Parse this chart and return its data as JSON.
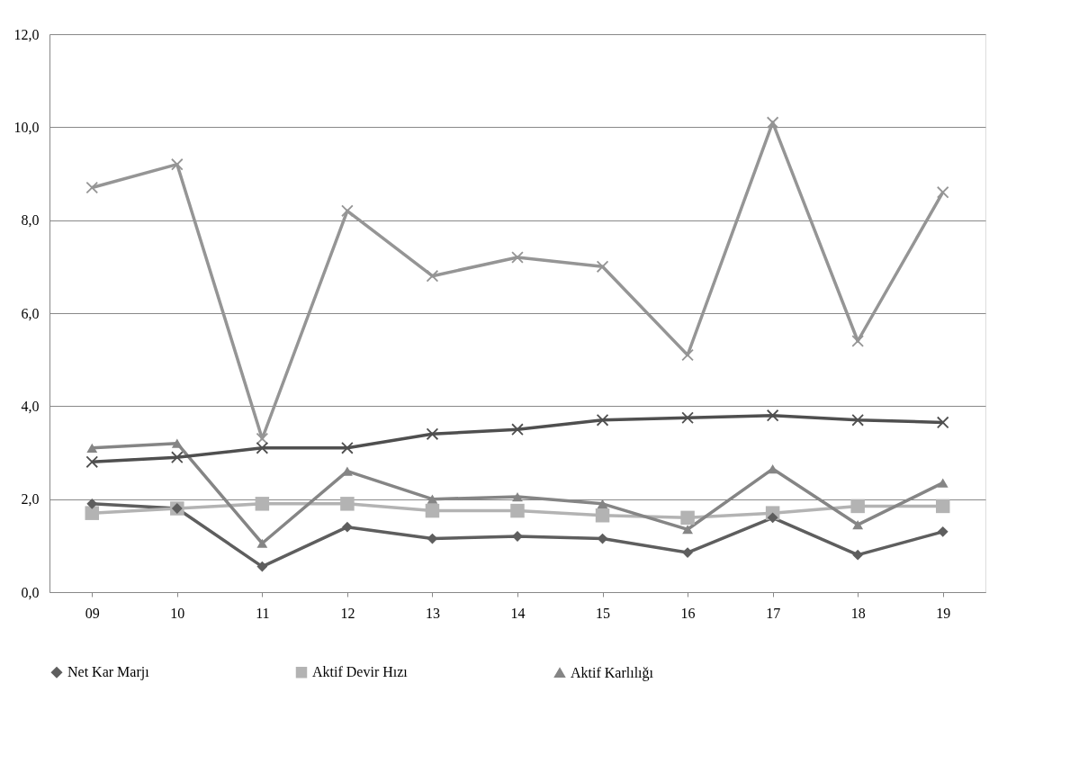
{
  "chart_data": {
    "type": "line",
    "categories": [
      "09",
      "10",
      "11",
      "12",
      "13",
      "14",
      "15",
      "16",
      "17",
      "18",
      "19"
    ],
    "series": [
      {
        "name": "Net Kar Marjı",
        "color": "#5e5e5e",
        "marker": "diamond",
        "values": [
          1.9,
          1.8,
          0.55,
          1.4,
          1.15,
          1.2,
          1.15,
          0.85,
          1.6,
          0.8,
          1.3
        ]
      },
      {
        "name": "Aktif Devir Hızı",
        "color": "#b3b3b3",
        "marker": "square",
        "values": [
          1.7,
          1.8,
          1.9,
          1.9,
          1.75,
          1.75,
          1.65,
          1.6,
          1.7,
          1.85,
          1.85
        ]
      },
      {
        "name": "Aktif Karlılığı",
        "color": "#858585",
        "marker": "triangle",
        "values": [
          3.1,
          3.2,
          1.05,
          2.6,
          2.0,
          2.05,
          1.9,
          1.35,
          2.65,
          1.45,
          2.35
        ]
      },
      {
        "color": "#4f4f4f",
        "marker": "cross",
        "values": [
          2.8,
          2.9,
          3.1,
          3.1,
          3.4,
          3.5,
          3.7,
          3.75,
          3.8,
          3.7,
          3.65
        ]
      },
      {
        "color": "#959595",
        "marker": "cross",
        "values": [
          8.7,
          9.2,
          3.3,
          8.2,
          6.8,
          7.2,
          7.0,
          5.1,
          10.1,
          5.4,
          8.6
        ]
      }
    ],
    "ylim": [
      0,
      12
    ],
    "yticks": [
      {
        "value": 0,
        "label": "0,0"
      },
      {
        "value": 2,
        "label": "2,0"
      },
      {
        "value": 4,
        "label": "4,0"
      },
      {
        "value": 6,
        "label": "6,0"
      },
      {
        "value": 8,
        "label": "8,0"
      },
      {
        "value": 10,
        "label": "10,0"
      },
      {
        "value": 12,
        "label": "12,0"
      }
    ],
    "grid": "y",
    "legend": "bottom",
    "line_style": "solid"
  }
}
